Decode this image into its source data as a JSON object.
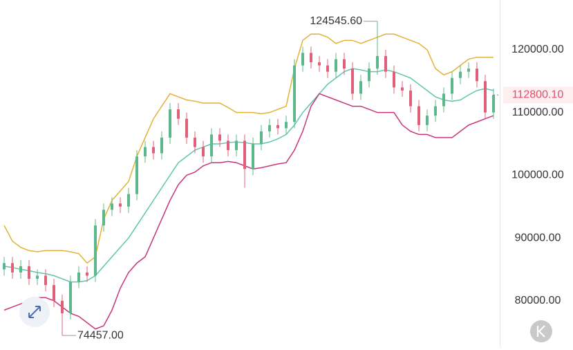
{
  "chart_data": {
    "type": "candlestick",
    "open": [
      85000,
      86000,
      84500,
      85500,
      83500,
      84000,
      82500,
      80000,
      78000,
      83000,
      84500,
      84000,
      92000,
      94500,
      95500,
      95000,
      97000,
      103000,
      104500,
      103500,
      106000,
      110500,
      109000,
      106000,
      104500,
      103000,
      106500,
      105500,
      104000,
      105500,
      101000,
      105000,
      107000,
      108000,
      107500,
      108500,
      117500,
      119500,
      118000,
      117500,
      116500,
      118500,
      117000,
      113000,
      115000,
      117000,
      119000,
      116500,
      114000,
      113500,
      111000,
      108000,
      109500,
      111000,
      113000,
      115500,
      116500,
      117000,
      115000,
      110000
    ],
    "high": [
      87000,
      87000,
      86500,
      86500,
      85000,
      85000,
      83500,
      81000,
      84000,
      85500,
      85500,
      93000,
      95500,
      96500,
      96500,
      98000,
      104000,
      105500,
      105500,
      107000,
      111500,
      111500,
      110000,
      107000,
      105500,
      107500,
      107500,
      106500,
      106500,
      106500,
      106000,
      108000,
      109000,
      109000,
      109500,
      118500,
      120500,
      120500,
      119000,
      118500,
      119500,
      119500,
      118000,
      116000,
      118000,
      124545.6,
      120000,
      117500,
      115000,
      114500,
      112000,
      110500,
      112000,
      114000,
      116500,
      117500,
      118000,
      118000,
      116000,
      113800
    ],
    "low": [
      84000,
      83500,
      83500,
      82500,
      82500,
      81500,
      79000,
      74457,
      77000,
      82000,
      83000,
      83000,
      91000,
      93500,
      94000,
      94000,
      96000,
      102000,
      102500,
      102500,
      105000,
      108000,
      105000,
      103500,
      102000,
      102000,
      104500,
      103000,
      103000,
      98000,
      100000,
      104000,
      106000,
      106500,
      106500,
      107500,
      116500,
      117000,
      116500,
      115500,
      115500,
      116000,
      112000,
      112000,
      114000,
      116000,
      115500,
      113000,
      112500,
      110000,
      107000,
      107000,
      108500,
      110000,
      112000,
      114500,
      115500,
      114000,
      109000,
      109000
    ],
    "close": [
      86000,
      84500,
      85500,
      83500,
      84000,
      82500,
      80000,
      78000,
      83000,
      84500,
      84000,
      92000,
      94500,
      95500,
      95000,
      97000,
      103000,
      104500,
      103500,
      106000,
      110500,
      109000,
      106000,
      104500,
      103000,
      106500,
      105500,
      104000,
      105500,
      101000,
      105000,
      107000,
      108000,
      107500,
      108500,
      117500,
      119500,
      118000,
      117500,
      116500,
      118500,
      117000,
      113000,
      115000,
      117000,
      119000,
      116500,
      114000,
      113500,
      111000,
      108000,
      109500,
      111000,
      113000,
      115500,
      116500,
      117000,
      115000,
      110000,
      112800.1
    ],
    "up_color": "#5cb88a",
    "down_color": "#e0607a",
    "bands": [
      {
        "color": "#e3b234",
        "values": [
          92000,
          89500,
          88500,
          88000,
          87800,
          88000,
          88000,
          88000,
          87800,
          87500,
          86000,
          87000,
          93000,
          96000,
          97500,
          99000,
          103000,
          106000,
          109000,
          111000,
          113000,
          112500,
          112000,
          111800,
          111500,
          111500,
          111500,
          110800,
          110000,
          110000,
          110000,
          109800,
          110000,
          110500,
          111000,
          117000,
          121500,
          122500,
          122500,
          122000,
          121000,
          121500,
          121500,
          121000,
          121500,
          122000,
          122500,
          122500,
          122000,
          121500,
          121000,
          120000,
          117000,
          116000,
          116500,
          117500,
          118500,
          118800,
          118800,
          118800
        ]
      },
      {
        "color": "#5cc6ad",
        "values": [
          85500,
          85300,
          85000,
          84800,
          84500,
          84300,
          84000,
          83500,
          83000,
          83000,
          83200,
          84000,
          85500,
          87000,
          88500,
          90000,
          92000,
          94000,
          96000,
          98000,
          100000,
          102000,
          103000,
          104000,
          104500,
          105000,
          105000,
          105200,
          105300,
          105200,
          105000,
          105000,
          105300,
          105800,
          106500,
          108000,
          110000,
          111500,
          113000,
          114500,
          115500,
          116500,
          117000,
          116800,
          116500,
          116500,
          116800,
          116500,
          116000,
          115500,
          114500,
          113500,
          112500,
          112000,
          111800,
          112000,
          112800,
          113500,
          113800,
          113500
        ]
      },
      {
        "color": "#c8347a",
        "values": [
          78500,
          79000,
          79500,
          80000,
          80500,
          80500,
          80000,
          79000,
          78000,
          77500,
          76500,
          75500,
          76000,
          78500,
          82000,
          84500,
          86000,
          87000,
          90000,
          93000,
          96000,
          98500,
          100000,
          100500,
          101500,
          102000,
          102000,
          102200,
          102000,
          101500,
          101000,
          101200,
          101500,
          101800,
          102000,
          104000,
          107000,
          111000,
          113000,
          112500,
          112000,
          111500,
          111000,
          111000,
          110500,
          110000,
          110000,
          110000,
          108000,
          107000,
          106500,
          106500,
          106000,
          106000,
          106000,
          107000,
          108000,
          108500,
          109000,
          109500
        ]
      }
    ],
    "ylim": [
      72700,
      127930
    ],
    "yticks": [
      {
        "value": 80000,
        "label": "80000.00"
      },
      {
        "value": 90000,
        "label": "90000.00"
      },
      {
        "value": 100000,
        "label": "100000.00"
      },
      {
        "value": 110000,
        "label": "110000.00"
      },
      {
        "value": 120000,
        "label": "120000.00"
      }
    ],
    "max_label": {
      "value": 124545.6,
      "label": "124545.60"
    },
    "min_label": {
      "value": 74457,
      "label": "74457.00"
    },
    "last_price": {
      "value": 112800.1,
      "label": "112800.10",
      "color": "#e0506a"
    }
  }
}
